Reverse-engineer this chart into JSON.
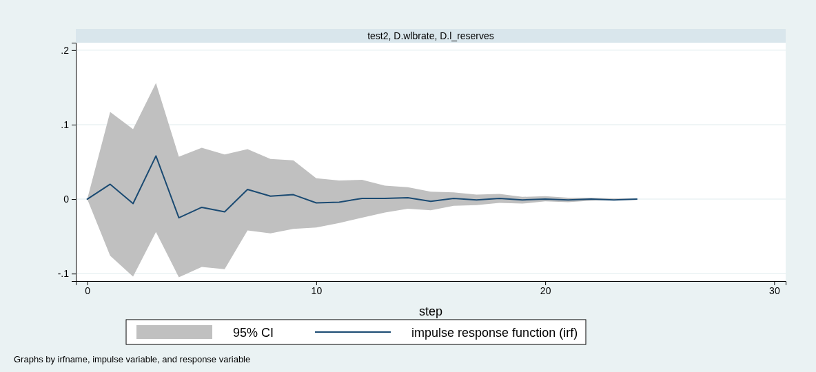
{
  "chart_data": {
    "type": "line",
    "title": "test2, D.wlbrate, D.l_reserves",
    "xlabel": "step",
    "x": [
      0,
      1,
      2,
      3,
      4,
      5,
      6,
      7,
      8,
      9,
      10,
      11,
      12,
      13,
      14,
      15,
      16,
      17,
      18,
      19,
      20,
      21,
      22,
      23,
      24
    ],
    "series": [
      {
        "name": "impulse response function (irf)",
        "color": "#1a4a72",
        "values": [
          0,
          0.02,
          -0.006,
          0.058,
          -0.025,
          -0.011,
          -0.017,
          0.013,
          0.004,
          0.006,
          -0.005,
          -0.004,
          0.001,
          0.001,
          0.002,
          -0.003,
          0.001,
          -0.001,
          0.001,
          -0.001,
          0,
          -0.001,
          0,
          -0.001,
          0
        ],
        "lower": [
          0,
          -0.076,
          -0.104,
          -0.044,
          -0.105,
          -0.091,
          -0.094,
          -0.042,
          -0.046,
          -0.04,
          -0.038,
          -0.032,
          -0.025,
          -0.018,
          -0.013,
          -0.015,
          -0.009,
          -0.008,
          -0.005,
          -0.006,
          -0.003,
          -0.004,
          -0.002,
          -0.001,
          -0.001
        ],
        "upper": [
          0,
          0.117,
          0.094,
          0.156,
          0.057,
          0.069,
          0.06,
          0.067,
          0.054,
          0.052,
          0.028,
          0.025,
          0.026,
          0.018,
          0.016,
          0.01,
          0.009,
          0.006,
          0.007,
          0.003,
          0.004,
          0.002,
          0.002,
          0.001,
          0.001
        ]
      }
    ],
    "xlim": [
      -0.5,
      30.5
    ],
    "xticks": [
      0,
      10,
      20,
      30
    ],
    "ylim": [
      -0.11,
      0.21
    ],
    "yticks": [
      {
        "value": -0.1,
        "label": "-.1"
      },
      {
        "value": 0,
        "label": "0"
      },
      {
        "value": 0.1,
        "label": ".1"
      },
      {
        "value": 0.2,
        "label": ".2"
      }
    ],
    "grid": "y",
    "legend": "bottom",
    "annotations": [
      "95% CI",
      "Graphs by irfname, impulse variable, and response variable"
    ]
  }
}
